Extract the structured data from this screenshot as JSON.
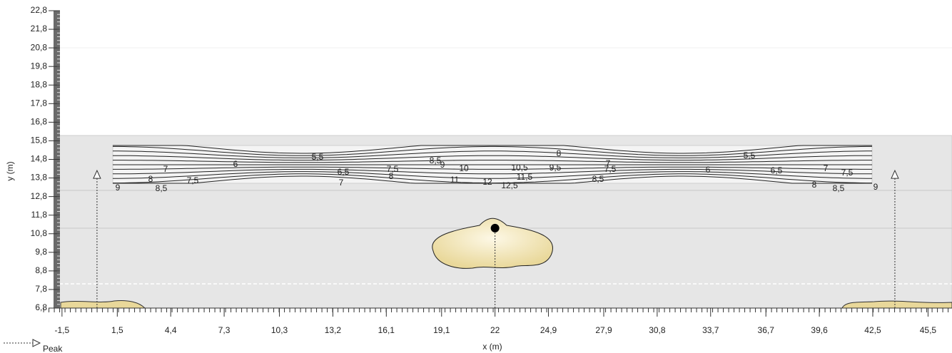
{
  "chart_data": {
    "type": "peak-map",
    "xlabel": "x (m)",
    "ylabel": "y (m)",
    "xlim": [
      -1.65,
      46.8
    ],
    "ylim": [
      6.8,
      22.8
    ],
    "xticks": [
      {
        "value": -1.5,
        "label": "-1,5"
      },
      {
        "value": 1.5,
        "label": "1,5"
      },
      {
        "value": 4.4,
        "label": "4,4"
      },
      {
        "value": 7.3,
        "label": "7,3"
      },
      {
        "value": 10.3,
        "label": "10,3"
      },
      {
        "value": 13.2,
        "label": "13,2"
      },
      {
        "value": 16.1,
        "label": "16,1"
      },
      {
        "value": 19.1,
        "label": "19,1"
      },
      22,
      {
        "value": 24.9,
        "label": "24,9"
      },
      {
        "value": 27.9,
        "label": "27,9"
      },
      {
        "value": 30.8,
        "label": "30,8"
      },
      {
        "value": 33.7,
        "label": "33,7"
      },
      {
        "value": 36.7,
        "label": "36,7"
      },
      {
        "value": 39.6,
        "label": "39,6"
      },
      {
        "value": 42.5,
        "label": "42,5"
      },
      {
        "value": 45.5,
        "label": "45,5"
      }
    ],
    "yticks": [
      {
        "value": 6.8,
        "label": "6,8"
      },
      {
        "value": 7.8,
        "label": "7,8"
      },
      {
        "value": 8.8,
        "label": "8,8"
      },
      {
        "value": 9.8,
        "label": "9,8"
      },
      {
        "value": 10.8,
        "label": "10,8"
      },
      {
        "value": 11.8,
        "label": "11,8"
      },
      {
        "value": 12.8,
        "label": "12,8"
      },
      {
        "value": 13.8,
        "label": "13,8"
      },
      {
        "value": 14.8,
        "label": "14,8"
      },
      {
        "value": 15.8,
        "label": "15,8"
      },
      {
        "value": 16.8,
        "label": "16,8"
      },
      {
        "value": 17.8,
        "label": "17,8"
      },
      {
        "value": 18.8,
        "label": "18,8"
      },
      {
        "value": 19.8,
        "label": "19,8"
      },
      {
        "value": 20.8,
        "label": "20,8"
      },
      {
        "value": 21.8,
        "label": "21,8"
      },
      {
        "value": 22.8,
        "label": "22,8"
      }
    ],
    "series": [
      {
        "name": "Peak",
        "color": "#333333",
        "x": [
          0.4,
          22,
          43.7
        ],
        "values": [
          14.2,
          11.1,
          14.2
        ],
        "markers": [
          "arrow",
          "dot",
          "arrow"
        ]
      }
    ],
    "contour_labels": [
      9,
      8,
      {
        "value": 8.5,
        "label": "8,5"
      },
      7,
      {
        "value": 7.5,
        "label": "7,5"
      },
      6,
      {
        "value": 5.5,
        "label": "5,5"
      },
      {
        "value": 6.5,
        "label": "6,5"
      },
      7,
      {
        "value": 7.5,
        "label": "7,5"
      },
      8,
      {
        "value": 8.5,
        "label": "8,5"
      },
      9,
      10,
      11,
      12,
      {
        "value": 12.5,
        "label": "12,5"
      },
      {
        "value": 10.5,
        "label": "10,5"
      },
      {
        "value": 11.5,
        "label": "11,5"
      },
      {
        "value": 9.5,
        "label": "9,5"
      },
      8,
      7,
      {
        "value": 7.5,
        "label": "7,5"
      },
      {
        "value": 8.5,
        "label": "8,5"
      },
      6,
      {
        "value": 5.5,
        "label": "5,5"
      },
      {
        "value": 6.5,
        "label": "6,5"
      },
      7,
      {
        "value": 7.5,
        "label": "7,5"
      },
      8,
      {
        "value": 8.5,
        "label": "8,5"
      },
      9
    ]
  }
}
